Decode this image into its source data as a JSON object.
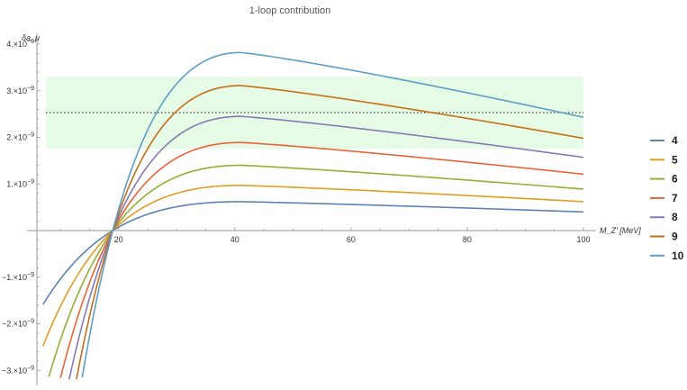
{
  "chart_data": {
    "type": "line",
    "title": "1-loop contribution",
    "ylabel": "δa_μ",
    "xlabel": "M_Z' [MeV]",
    "xlim": [
      7,
      100
    ],
    "ylim": [
      -3.2e-09,
      4.3e-09
    ],
    "x_ticks": [
      20,
      40,
      60,
      80,
      100
    ],
    "x_tick_labels": [
      "20",
      "40",
      "60",
      "80",
      "100"
    ],
    "y_ticks": [
      4e-09,
      3e-09,
      2e-09,
      1e-09,
      -1e-09,
      -2e-09,
      -3e-09
    ],
    "y_tick_labels": [
      {
        "mantissa": "4.×10",
        "exp": "−9"
      },
      {
        "mantissa": "3.×10",
        "exp": "−9"
      },
      {
        "mantissa": "2.×10",
        "exp": "−9"
      },
      {
        "mantissa": "1.×10",
        "exp": "−9"
      },
      {
        "mantissa": "−1.×10",
        "exp": "−9"
      },
      {
        "mantissa": "−2.×10",
        "exp": "−9"
      },
      {
        "mantissa": "−3.×10",
        "exp": "−9"
      }
    ],
    "band": {
      "y_low": 1.75e-09,
      "y_high": 3.3e-09,
      "color": "#e6fbe6"
    },
    "reference_line": {
      "y": 2.53e-09,
      "style": "dotted",
      "color": "#333333"
    },
    "crossing_x": 19,
    "peak_x": 41,
    "grid": false,
    "legend_position": "right",
    "series": [
      {
        "name": "4",
        "color": "#5e81b5",
        "peak": 6.2e-10,
        "end": 4e-10
      },
      {
        "name": "5",
        "color": "#e19c24",
        "peak": 9.7e-10,
        "end": 6.2e-10
      },
      {
        "name": "6",
        "color": "#8fb032",
        "peak": 1.4e-09,
        "end": 8.9e-10
      },
      {
        "name": "7",
        "color": "#eb6235",
        "peak": 1.89e-09,
        "end": 1.21e-09
      },
      {
        "name": "8",
        "color": "#8778b3",
        "peak": 2.45e-09,
        "end": 1.57e-09
      },
      {
        "name": "9",
        "color": "#c56e1a",
        "peak": 3.11e-09,
        "end": 1.98e-09
      },
      {
        "name": "10",
        "color": "#5d9ec7",
        "peak": 3.82e-09,
        "end": 2.43e-09
      }
    ]
  }
}
